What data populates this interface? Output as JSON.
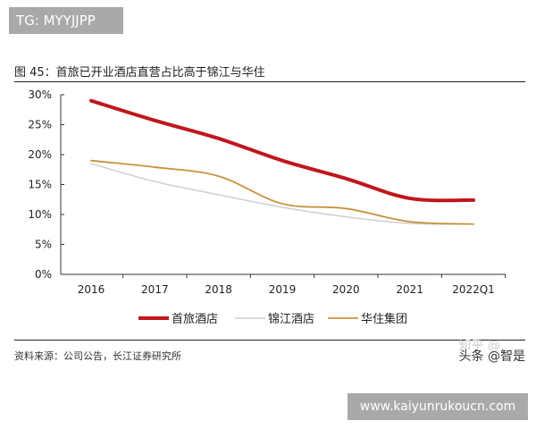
{
  "overlay_tag": "TG: MYYJJPP",
  "figure_title": "图 45：首旅已开业酒店直营占比高于锦江与华住",
  "source": "资料来源：公司公告，长江证券研究所",
  "watermark": "头条 @智是",
  "watermark_faint": "知乎 @",
  "site_label": "www.kaiyunrukoucn.com",
  "chart_data": {
    "type": "line",
    "categories": [
      "2016",
      "2017",
      "2018",
      "2019",
      "2020",
      "2021",
      "2022Q1"
    ],
    "ylim": [
      0,
      30
    ],
    "yticks": [
      "0%",
      "5%",
      "10%",
      "15%",
      "20%",
      "25%",
      "30%"
    ],
    "ytick_values": [
      0,
      5,
      10,
      15,
      20,
      25,
      30
    ],
    "legend_position": "bottom",
    "grid": false,
    "series": [
      {
        "name": "首旅酒店",
        "color": "#c0161c",
        "values": [
          29.0,
          25.7,
          22.7,
          19.0,
          16.0,
          12.7,
          12.4
        ]
      },
      {
        "name": "锦江酒店",
        "color": "#cfcfcf",
        "values": [
          18.5,
          15.5,
          13.3,
          11.2,
          9.6,
          8.5,
          8.4
        ]
      },
      {
        "name": "华住集团",
        "color": "#c8913e",
        "values": [
          19.0,
          17.9,
          16.4,
          11.8,
          11.0,
          8.8,
          8.4
        ]
      }
    ]
  }
}
